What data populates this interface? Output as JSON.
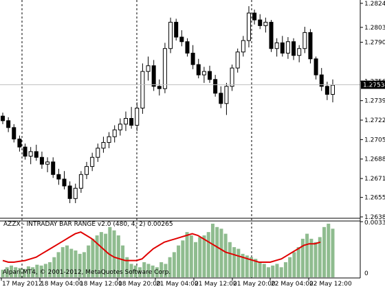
{
  "chart_data": [
    {
      "type": "candlestick",
      "price_axis": {
        "ticks": [
          "1.28245",
          "1.28035",
          "1.27905",
          "1.27565",
          "1.27395",
          "1.27225",
          "1.27055",
          "1.26885",
          "1.26715",
          "1.26550",
          "1.26380"
        ],
        "ylim": [
          1.2638,
          1.2825
        ]
      },
      "current_price_label": "1.27534",
      "current_price": 1.27534,
      "ohlc": [
        [
          1.2726,
          1.2729,
          1.2719,
          1.2722
        ],
        [
          1.2722,
          1.2725,
          1.2712,
          1.2716
        ],
        [
          1.2716,
          1.2719,
          1.2703,
          1.2706
        ],
        [
          1.2706,
          1.2709,
          1.2695,
          1.2699
        ],
        [
          1.2699,
          1.2702,
          1.2688,
          1.2691
        ],
        [
          1.2691,
          1.2699,
          1.2684,
          1.2695
        ],
        [
          1.2695,
          1.2701,
          1.2687,
          1.269
        ],
        [
          1.269,
          1.2695,
          1.268,
          1.2684
        ],
        [
          1.2684,
          1.269,
          1.2677,
          1.2686
        ],
        [
          1.2686,
          1.269,
          1.2672,
          1.2675
        ],
        [
          1.2675,
          1.268,
          1.2666,
          1.2671
        ],
        [
          1.2671,
          1.2678,
          1.2662,
          1.2665
        ],
        [
          1.2665,
          1.2669,
          1.265,
          1.2654
        ],
        [
          1.2654,
          1.2667,
          1.265,
          1.2663
        ],
        [
          1.2663,
          1.2678,
          1.2659,
          1.2675
        ],
        [
          1.2675,
          1.2686,
          1.2671,
          1.2682
        ],
        [
          1.2682,
          1.2694,
          1.2678,
          1.269
        ],
        [
          1.269,
          1.2702,
          1.2686,
          1.2698
        ],
        [
          1.2698,
          1.2708,
          1.2694,
          1.2703
        ],
        [
          1.2703,
          1.2712,
          1.2698,
          1.2708
        ],
        [
          1.2708,
          1.2718,
          1.2703,
          1.2714
        ],
        [
          1.2714,
          1.2724,
          1.2709,
          1.2719
        ],
        [
          1.2719,
          1.273,
          1.2713,
          1.2724
        ],
        [
          1.2724,
          1.2734,
          1.2715,
          1.2718
        ],
        [
          1.2718,
          1.2738,
          1.2713,
          1.2733
        ],
        [
          1.2733,
          1.2772,
          1.2728,
          1.2765
        ],
        [
          1.2765,
          1.2778,
          1.2757,
          1.277
        ],
        [
          1.277,
          1.2775,
          1.2748,
          1.2752
        ],
        [
          1.2752,
          1.2758,
          1.2744,
          1.275
        ],
        [
          1.275,
          1.279,
          1.2746,
          1.2785
        ],
        [
          1.2785,
          1.2812,
          1.2781,
          1.2808
        ],
        [
          1.2808,
          1.2811,
          1.2792,
          1.2795
        ],
        [
          1.2795,
          1.2801,
          1.2787,
          1.2791
        ],
        [
          1.2791,
          1.2794,
          1.2778,
          1.2781
        ],
        [
          1.2781,
          1.2788,
          1.2767,
          1.2771
        ],
        [
          1.2771,
          1.2776,
          1.2759,
          1.2762
        ],
        [
          1.2762,
          1.2769,
          1.2755,
          1.2765
        ],
        [
          1.2765,
          1.277,
          1.2755,
          1.2758
        ],
        [
          1.2758,
          1.2762,
          1.2743,
          1.2746
        ],
        [
          1.2746,
          1.2752,
          1.2733,
          1.2737
        ],
        [
          1.2737,
          1.2755,
          1.2727,
          1.2752
        ],
        [
          1.2752,
          1.2771,
          1.2748,
          1.2768
        ],
        [
          1.2768,
          1.2785,
          1.2764,
          1.2782
        ],
        [
          1.2782,
          1.2796,
          1.2778,
          1.2792
        ],
        [
          1.2792,
          1.2822,
          1.2786,
          1.2816
        ],
        [
          1.2816,
          1.2819,
          1.2806,
          1.281
        ],
        [
          1.281,
          1.2815,
          1.2802,
          1.2805
        ],
        [
          1.2805,
          1.2812,
          1.2799,
          1.2808
        ],
        [
          1.2808,
          1.281,
          1.2782,
          1.2785
        ],
        [
          1.2785,
          1.2794,
          1.2778,
          1.279
        ],
        [
          1.279,
          1.2796,
          1.2778,
          1.2781
        ],
        [
          1.2781,
          1.2795,
          1.2776,
          1.2791
        ],
        [
          1.2791,
          1.2794,
          1.2775,
          1.2779
        ],
        [
          1.2779,
          1.2788,
          1.2773,
          1.2785
        ],
        [
          1.2785,
          1.2804,
          1.2781,
          1.2799
        ],
        [
          1.2799,
          1.2802,
          1.2772,
          1.2776
        ],
        [
          1.2776,
          1.2778,
          1.2758,
          1.2762
        ],
        [
          1.2762,
          1.2768,
          1.2748,
          1.2752
        ],
        [
          1.2752,
          1.2756,
          1.274,
          1.2745
        ],
        [
          1.2745,
          1.2758,
          1.2738,
          1.2753
        ]
      ],
      "x_ticks": [
        "17 May 2012",
        "18 May 04:00",
        "18 May 12:00",
        "18 May 20:00",
        "21 May 04:00",
        "21 May 12:00",
        "21 May 20:00",
        "22 May 04:00",
        "22 May 12:00"
      ]
    },
    {
      "type": "bar",
      "indicator_label": "AZZX - INTRADAY BAR RANGE v2.0 (480, 4, 2) 0.00265",
      "y_ticks": [
        "0.00332",
        "0"
      ],
      "ylim": [
        0,
        0.00332
      ],
      "bar_color": "#8fbc8f",
      "line_color": "#e00000",
      "values": [
        0.00045,
        0.0006,
        0.0007,
        0.0006,
        0.00055,
        0.0005,
        0.00065,
        0.0006,
        0.00075,
        0.0007,
        0.0008,
        0.0009,
        0.0012,
        0.0015,
        0.0018,
        0.0019,
        0.0017,
        0.0016,
        0.0014,
        0.0015,
        0.0019,
        0.0023,
        0.0025,
        0.0027,
        0.0026,
        0.003,
        0.0028,
        0.0025,
        0.0019,
        0.0012,
        0.0008,
        0.0007,
        0.0006,
        0.0009,
        0.0008,
        0.0007,
        0.0006,
        0.0009,
        0.0008,
        0.0012,
        0.0015,
        0.0019,
        0.0022,
        0.0027,
        0.0025,
        0.0021,
        0.0024,
        0.0025,
        0.0027,
        0.0032,
        0.003,
        0.0029,
        0.0026,
        0.0021,
        0.0018,
        0.0017,
        0.0014,
        0.0013,
        0.0012,
        0.0011,
        0.0009,
        0.0008,
        0.0006,
        0.0007,
        0.0008,
        0.0006,
        0.0009,
        0.0012,
        0.0015,
        0.0018,
        0.0023,
        0.0026,
        0.0023,
        0.0021,
        0.0024,
        0.003,
        0.0032,
        0.0029
      ],
      "line_values": [
        0.001,
        0.0009,
        0.0009,
        0.00095,
        0.001,
        0.0011,
        0.0012,
        0.0014,
        0.0016,
        0.0018,
        0.002,
        0.0022,
        0.0024,
        0.0026,
        0.0027,
        0.0025,
        0.0023,
        0.002,
        0.0017,
        0.0014,
        0.0012,
        0.0011,
        0.001,
        0.001,
        0.001,
        0.0011,
        0.0014,
        0.0017,
        0.0019,
        0.0021,
        0.0022,
        0.0023,
        0.0024,
        0.0025,
        0.0026,
        0.0025,
        0.0023,
        0.0021,
        0.0019,
        0.0017,
        0.0015,
        0.0014,
        0.0013,
        0.0012,
        0.0011,
        0.001,
        0.0009,
        0.0009,
        0.0009,
        0.001,
        0.0011,
        0.0013,
        0.0015,
        0.0017,
        0.0019,
        0.002,
        0.002,
        0.0021
      ]
    }
  ],
  "watermark": "Alpari MT4, © 2001-2012, MetaQuotes Software Corp."
}
